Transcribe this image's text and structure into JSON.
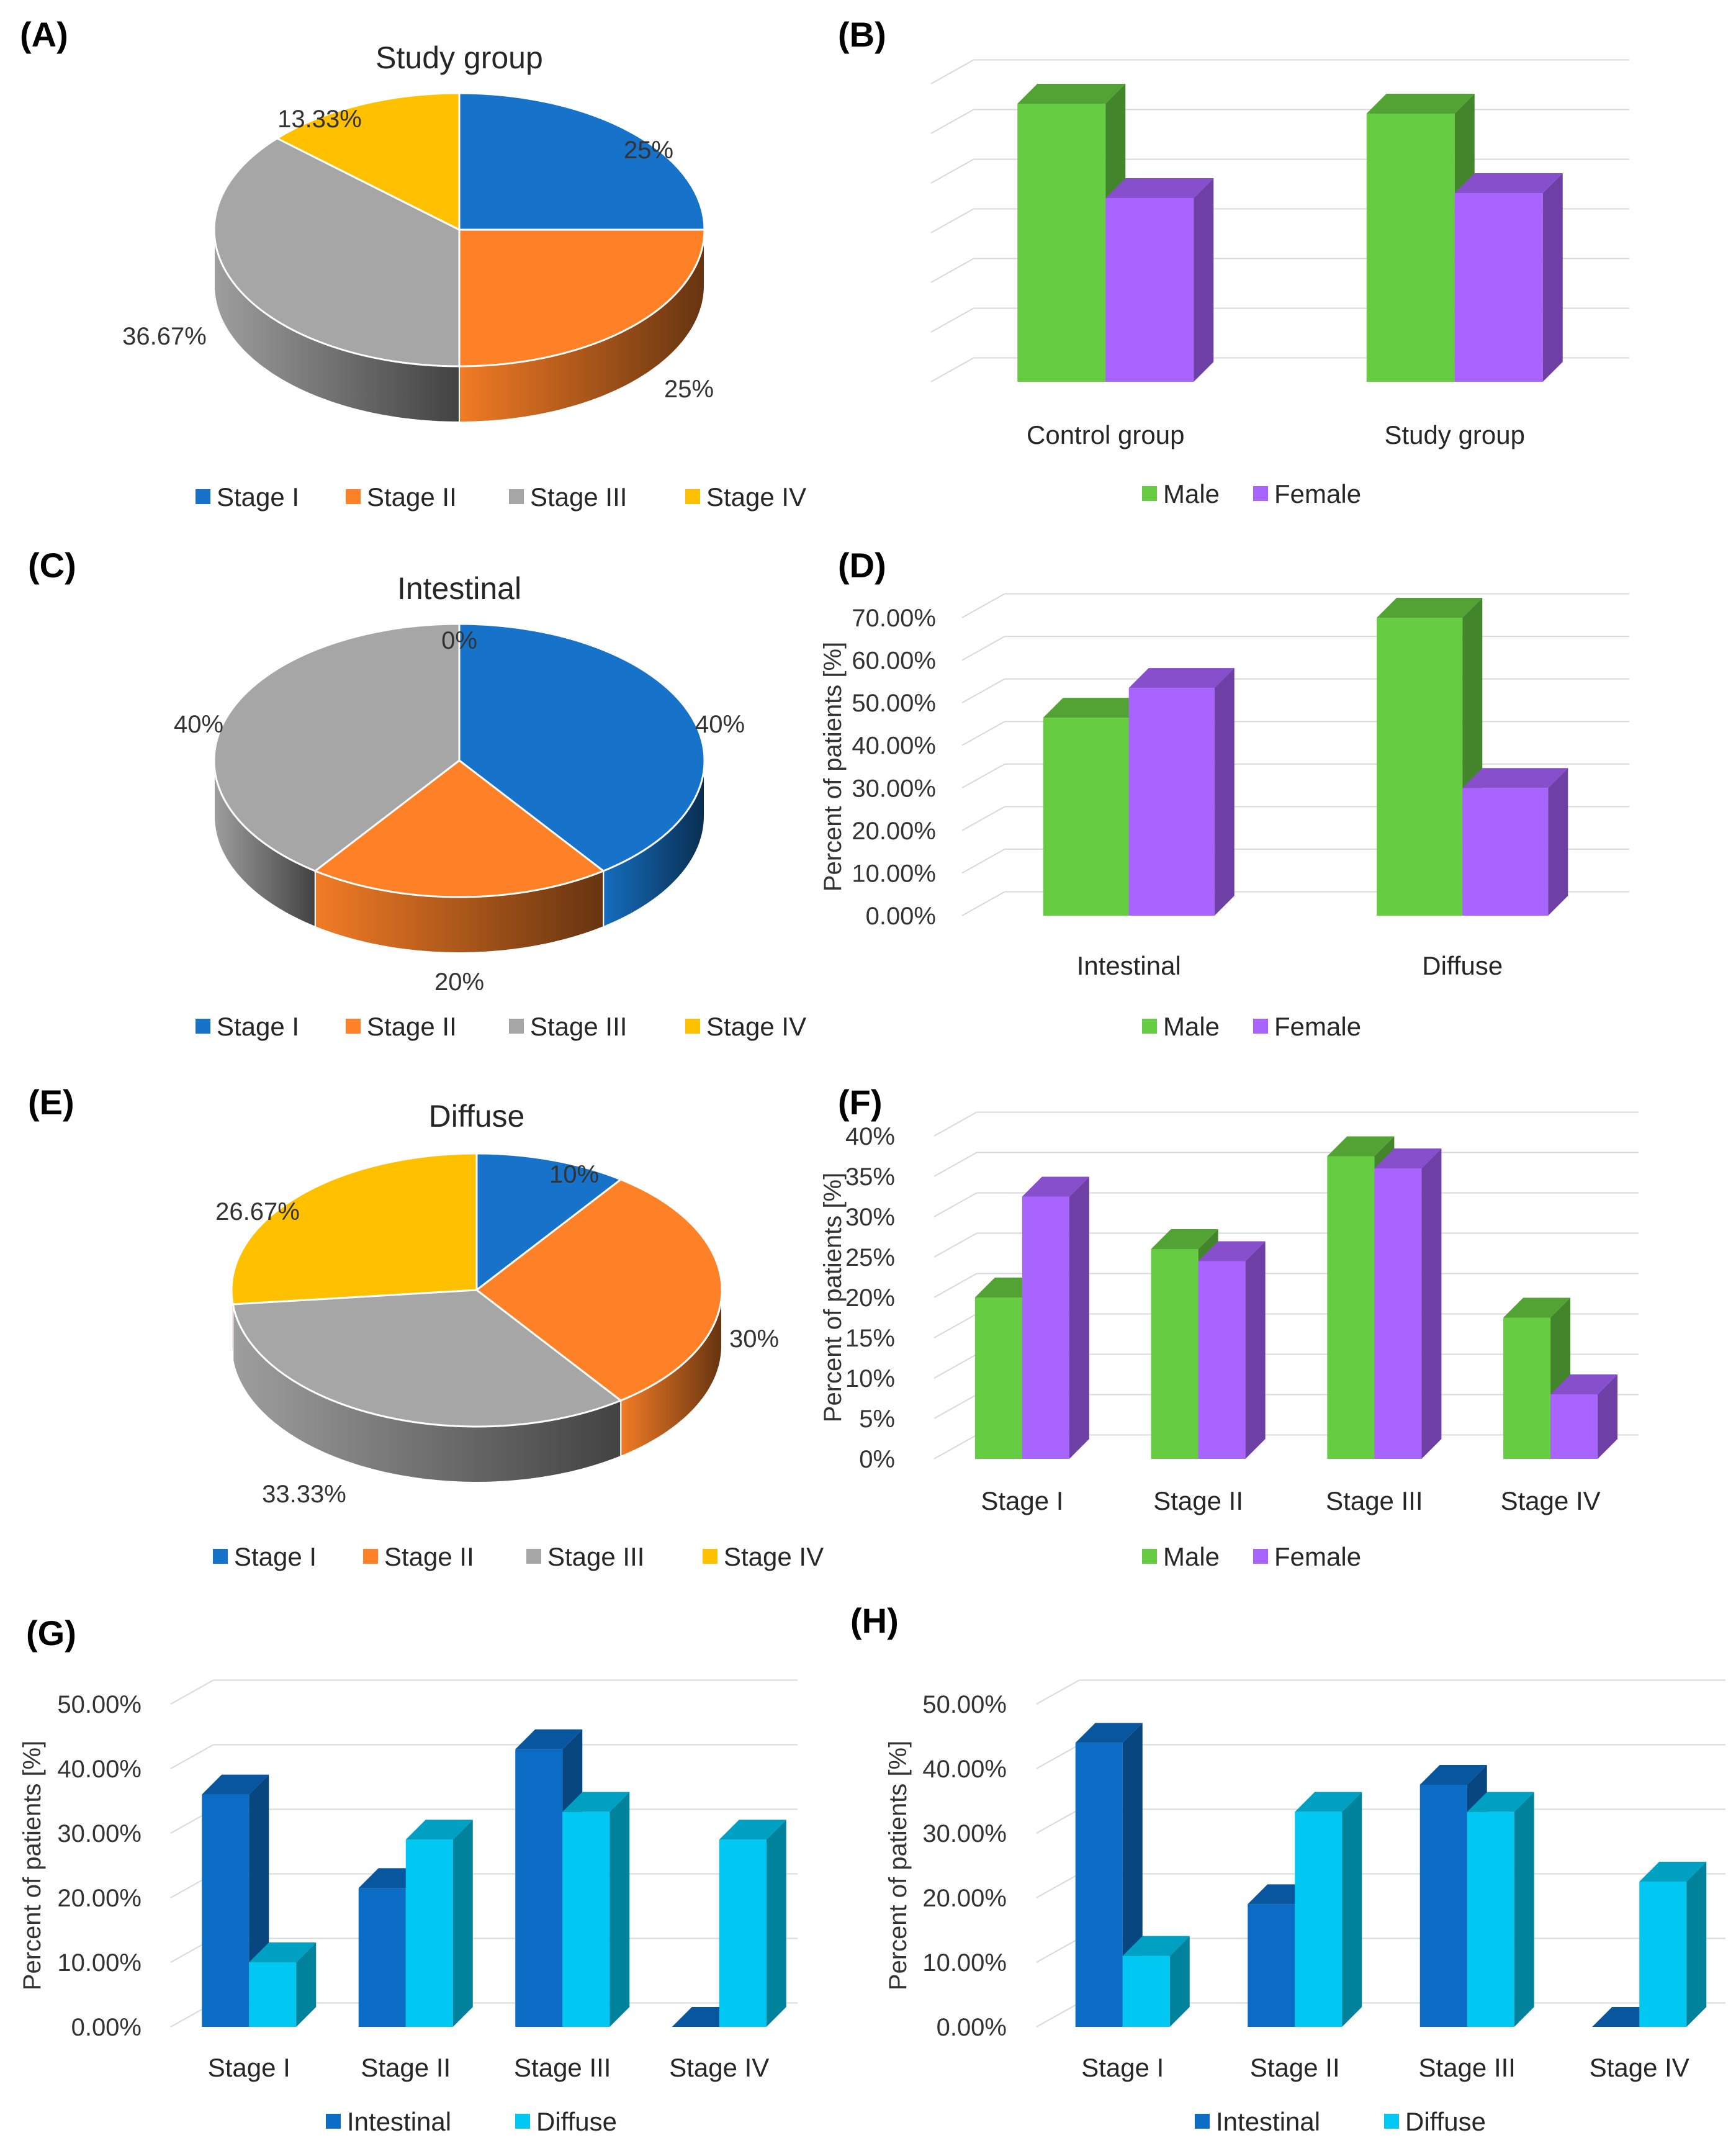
{
  "colors": {
    "stage_i": "#1673C9",
    "stage_ii": "#FF8127",
    "stage_iii": "#A6A6A6",
    "stage_iv": "#FFC000",
    "male": "#66CC41",
    "female": "#A963FF",
    "intestinal": "#0A6CC4",
    "diffuse": "#00C8F2"
  },
  "panels": {
    "A": {
      "letter": "(A)"
    },
    "B": {
      "letter": "(B)"
    },
    "C": {
      "letter": "(C)"
    },
    "D": {
      "letter": "(D)"
    },
    "E": {
      "letter": "(E)"
    },
    "F": {
      "letter": "(F)"
    },
    "G": {
      "letter": "(G)"
    },
    "H": {
      "letter": "(H)"
    }
  },
  "chart_data": [
    {
      "id": "A",
      "type": "pie",
      "title": "Study group",
      "labels": [
        "Stage I",
        "Stage II",
        "Stage III",
        "Stage IV"
      ],
      "values": [
        25,
        25,
        36.67,
        13.33
      ],
      "data_labels": [
        "25%",
        "25%",
        "36.67%",
        "13.33%"
      ],
      "legend": [
        "Stage I",
        "Stage II",
        "Stage III",
        "Stage IV"
      ],
      "legend_position": "bottom"
    },
    {
      "id": "B",
      "type": "bar",
      "title": "",
      "categories": [
        "Control group",
        "Study group"
      ],
      "series": [
        {
          "name": "Male",
          "values": [
            56,
            54
          ]
        },
        {
          "name": "Female",
          "values": [
            37,
            38
          ]
        }
      ],
      "ylim": [
        0,
        60
      ],
      "ylabel": "",
      "y_ticks": [],
      "grid": true,
      "legend_position": "bottom"
    },
    {
      "id": "C",
      "type": "pie",
      "title": "Intestinal",
      "labels": [
        "Stage I",
        "Stage II",
        "Stage III",
        "Stage IV"
      ],
      "values": [
        40,
        20,
        40,
        0
      ],
      "data_labels": [
        "40%",
        "20%",
        "40%",
        "0%"
      ],
      "legend": [
        "Stage I",
        "Stage II",
        "Stage III",
        "Stage IV"
      ],
      "legend_position": "bottom"
    },
    {
      "id": "D",
      "type": "bar",
      "title": "",
      "categories": [
        "Intestinal",
        "Diffuse"
      ],
      "series": [
        {
          "name": "Male",
          "values": [
            46.5,
            70
          ]
        },
        {
          "name": "Female",
          "values": [
            53.5,
            30
          ]
        }
      ],
      "ylim": [
        0,
        70
      ],
      "ylabel": "Percent of patients [%]",
      "y_ticks": [
        "0.00%",
        "10.00%",
        "20.00%",
        "30.00%",
        "40.00%",
        "50.00%",
        "60.00%",
        "70.00%"
      ],
      "grid": true,
      "legend_position": "bottom"
    },
    {
      "id": "E",
      "type": "pie",
      "title": "Diffuse",
      "labels": [
        "Stage I",
        "Stage II",
        "Stage III",
        "Stage IV"
      ],
      "values": [
        10,
        30,
        33.33,
        26.67
      ],
      "data_labels": [
        "10%",
        "30%",
        "33.33%",
        "26.67%"
      ],
      "legend": [
        "Stage I",
        "Stage II",
        "Stage III",
        "Stage IV"
      ],
      "legend_position": "bottom"
    },
    {
      "id": "F",
      "type": "bar",
      "title": "",
      "categories": [
        "Stage I",
        "Stage II",
        "Stage III",
        "Stage IV"
      ],
      "series": [
        {
          "name": "Male",
          "values": [
            20,
            26,
            37.5,
            17.5
          ]
        },
        {
          "name": "Female",
          "values": [
            32.5,
            24.5,
            36,
            8
          ]
        }
      ],
      "ylim": [
        0,
        40
      ],
      "ylabel": "Percent of patients [%]",
      "y_ticks": [
        "0%",
        "5%",
        "10%",
        "15%",
        "20%",
        "25%",
        "30%",
        "35%",
        "40%"
      ],
      "grid": true,
      "legend_position": "bottom"
    },
    {
      "id": "G",
      "type": "bar",
      "title": "",
      "categories": [
        "Stage I",
        "Stage II",
        "Stage III",
        "Stage IV"
      ],
      "series": [
        {
          "name": "Intestinal",
          "values": [
            36,
            21.5,
            43,
            0
          ]
        },
        {
          "name": "Diffuse",
          "values": [
            10,
            29,
            33.3,
            29
          ]
        }
      ],
      "ylim": [
        0,
        50
      ],
      "ylabel": "Percent of patients [%]",
      "y_ticks": [
        "0.00%",
        "10.00%",
        "20.00%",
        "30.00%",
        "40.00%",
        "50.00%"
      ],
      "grid": true,
      "legend_position": "bottom"
    },
    {
      "id": "H",
      "type": "bar",
      "title": "",
      "categories": [
        "Stage I",
        "Stage II",
        "Stage III",
        "Stage IV"
      ],
      "series": [
        {
          "name": "Intestinal",
          "values": [
            44,
            19,
            37.5,
            0
          ]
        },
        {
          "name": "Diffuse",
          "values": [
            11,
            33.3,
            33.3,
            22.5
          ]
        }
      ],
      "ylim": [
        0,
        50
      ],
      "ylabel": "Percent of patients [%]",
      "y_ticks": [
        "0.00%",
        "10.00%",
        "20.00%",
        "30.00%",
        "40.00%",
        "50.00%"
      ],
      "grid": true,
      "legend_position": "bottom"
    }
  ]
}
